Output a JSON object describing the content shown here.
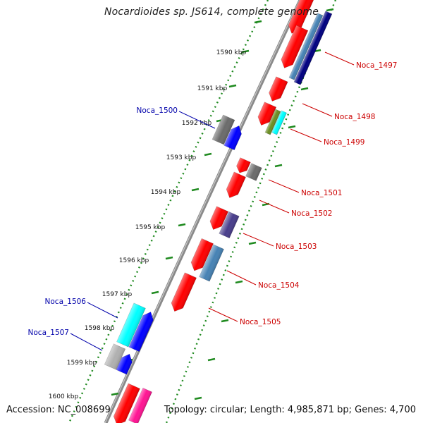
{
  "title": "Nocardioides sp. JS614, complete genome",
  "footer": {
    "accession": "Accession: NC_008699",
    "summary": "Topology: circular; Length: 4,985,871 bp; Genes: 4,700"
  },
  "scale_ticks": [
    {
      "label": "",
      "kbp": 1589
    },
    {
      "label": "1590 kbp",
      "kbp": 1590
    },
    {
      "label": "1591 kbp",
      "kbp": 1591
    },
    {
      "label": "1592 kbp",
      "kbp": 1592
    },
    {
      "label": "1593 kbp",
      "kbp": 1593
    },
    {
      "label": "1594 kbp",
      "kbp": 1594
    },
    {
      "label": "1595 kbp",
      "kbp": 1595
    },
    {
      "label": "1596 kbp",
      "kbp": 1596
    },
    {
      "label": "1597 kbp",
      "kbp": 1597
    },
    {
      "label": "1598 kbp",
      "kbp": 1598
    },
    {
      "label": "1599 kbp",
      "kbp": 1599
    },
    {
      "label": "1600 kbp",
      "kbp": 1600
    }
  ],
  "labels_forward": [
    {
      "name": "Noca_1500",
      "color": "#0000aa"
    },
    {
      "name": "Noca_1506",
      "color": "#0000aa"
    },
    {
      "name": "Noca_1507",
      "color": "#0000aa"
    }
  ],
  "labels_reverse": [
    {
      "name": "Noca_1497",
      "color": "#cc0000"
    },
    {
      "name": "Noca_1498",
      "color": "#cc0000"
    },
    {
      "name": "Noca_1499",
      "color": "#cc0000"
    },
    {
      "name": "Noca_1501",
      "color": "#cc0000"
    },
    {
      "name": "Noca_1502",
      "color": "#cc0000"
    },
    {
      "name": "Noca_1503",
      "color": "#cc0000"
    },
    {
      "name": "Noca_1504",
      "color": "#cc0000"
    },
    {
      "name": "Noca_1505",
      "color": "#cc0000"
    }
  ],
  "colors": {
    "backbone": "#7f7f7f",
    "tick_ring": "#1f8a1f",
    "gene_red": "#ff0000",
    "gene_blue": "#0000ff",
    "gene_navy": "#000080",
    "gene_steel": "#4682b4",
    "gene_gray": "#6b6b6b",
    "gene_cyan": "#00ffff",
    "gene_olive": "#6b8e23",
    "gene_purple": "#483d8b",
    "gene_pink": "#ff1493",
    "gene_silver": "#b0b0b0"
  }
}
